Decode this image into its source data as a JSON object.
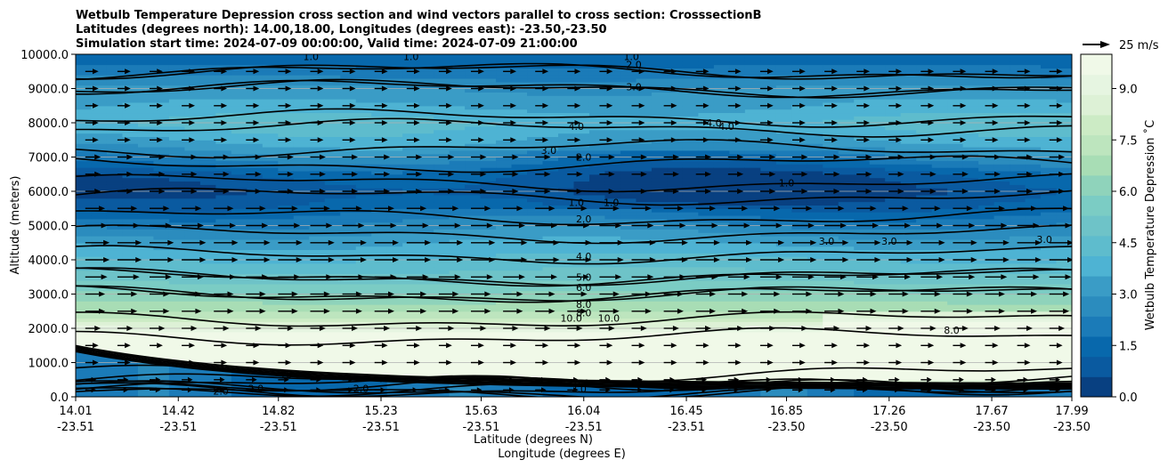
{
  "chart_data": {
    "type": "contourf",
    "title": [
      "Wetbulb Temperature Depression cross section and wind vectors parallel to cross section: CrosssectionB",
      "Latitudes (degrees north): 14.00,18.00, Longitudes (degrees east): -23.50,-23.50",
      "Simulation start time: 2024-07-09 00:00:00, Valid time: 2024-07-09 21:00:00"
    ],
    "ylabel": "Altitude (meters)",
    "xlabel": "Latitude (degrees N)",
    "xlabel2": "Longitude (degrees E)",
    "ylim": [
      0,
      10000
    ],
    "yticks": [
      "0.0",
      "1000.0",
      "2000.0",
      "3000.0",
      "4000.0",
      "5000.0",
      "6000.0",
      "7000.0",
      "8000.0",
      "9000.0",
      "10000.0"
    ],
    "xticks_lat": [
      "14.01",
      "14.42",
      "14.82",
      "15.23",
      "15.63",
      "16.04",
      "16.45",
      "16.85",
      "17.26",
      "17.67",
      "17.99"
    ],
    "xticks_lon": [
      "-23.51",
      "-23.51",
      "-23.51",
      "-23.51",
      "-23.51",
      "-23.51",
      "-23.51",
      "-23.50",
      "-23.50",
      "-23.50",
      "-23.50"
    ],
    "colorbar": {
      "label": "Wetbulb Temperature Depression ˚C",
      "range": [
        0,
        10
      ],
      "ticks": [
        "0.0",
        "1.5",
        "3.0",
        "4.5",
        "6.0",
        "7.5",
        "9.0"
      ],
      "colors": [
        "#084081",
        "#0a5aa0",
        "#0868ac",
        "#1b7bb8",
        "#2b8cbe",
        "#3a9cc6",
        "#4eb3d3",
        "#5ebccd",
        "#6ec3c8",
        "#7bccc4",
        "#8fd3bb",
        "#a8ddb5",
        "#bde5be",
        "#ccebc5",
        "#ddf1d6",
        "#e6f5e1",
        "#f0f9e8"
      ]
    },
    "profile": {
      "altitude": [
        0,
        200,
        500,
        1000,
        1500,
        2000,
        2500,
        3000,
        3500,
        4000,
        4500,
        5000,
        5500,
        6000,
        6500,
        7000,
        7500,
        8000,
        8500,
        9000,
        9500,
        10000
      ],
      "depression": [
        1.5,
        2.0,
        9.5,
        11.0,
        11.0,
        9.0,
        7.0,
        6.0,
        5.0,
        4.2,
        3.5,
        2.5,
        1.5,
        0.8,
        1.2,
        2.5,
        3.5,
        4.2,
        3.5,
        3.0,
        2.0,
        1.2
      ]
    },
    "contour_levels": [
      1.0,
      2.0,
      3.0,
      4.0,
      5.0,
      6.0,
      8.0,
      10.0
    ],
    "contour_labels": [
      {
        "text": "1.0",
        "lat": 14.95,
        "alt": 9930
      },
      {
        "text": "1.0",
        "lat": 15.35,
        "alt": 9930
      },
      {
        "text": "1.0",
        "lat": 16.23,
        "alt": 9930
      },
      {
        "text": "2.0",
        "lat": 16.24,
        "alt": 9700
      },
      {
        "text": "3.0",
        "lat": 16.24,
        "alt": 9050
      },
      {
        "text": "4.0",
        "lat": 16.56,
        "alt": 8000
      },
      {
        "text": "4.0",
        "lat": 16.61,
        "alt": 7900
      },
      {
        "text": "4.0",
        "lat": 16.01,
        "alt": 7900
      },
      {
        "text": "3.0",
        "lat": 15.9,
        "alt": 7200
      },
      {
        "text": "2.0",
        "lat": 16.04,
        "alt": 7000
      },
      {
        "text": "1.0",
        "lat": 16.85,
        "alt": 6250
      },
      {
        "text": "1.0",
        "lat": 16.01,
        "alt": 5680
      },
      {
        "text": "1.0",
        "lat": 16.15,
        "alt": 5680
      },
      {
        "text": "2.0",
        "lat": 16.04,
        "alt": 5200
      },
      {
        "text": "3.0",
        "lat": 17.01,
        "alt": 4550
      },
      {
        "text": "3.0",
        "lat": 17.26,
        "alt": 4550
      },
      {
        "text": "3.0",
        "lat": 17.88,
        "alt": 4600
      },
      {
        "text": "4.0",
        "lat": 16.04,
        "alt": 4100
      },
      {
        "text": "5.0",
        "lat": 16.04,
        "alt": 3500
      },
      {
        "text": "6.0",
        "lat": 16.04,
        "alt": 3200
      },
      {
        "text": "8.0",
        "lat": 16.04,
        "alt": 2700
      },
      {
        "text": "8.0",
        "lat": 16.04,
        "alt": 2450
      },
      {
        "text": "10.0",
        "lat": 15.99,
        "alt": 2300
      },
      {
        "text": "10.0",
        "lat": 16.14,
        "alt": 2300
      },
      {
        "text": "8.0",
        "lat": 17.51,
        "alt": 1950
      },
      {
        "text": "10",
        "lat": 14.85,
        "alt": 650
      },
      {
        "text": "2.0",
        "lat": 14.59,
        "alt": 170
      },
      {
        "text": "2.0",
        "lat": 14.73,
        "alt": 250
      },
      {
        "text": "2.0",
        "lat": 15.15,
        "alt": 250
      },
      {
        "text": "10.0",
        "lat": 16.02,
        "alt": 400
      },
      {
        "text": "2.0",
        "lat": 16.02,
        "alt": 230
      }
    ],
    "wind": {
      "direction": "parallel to cross section (southerly → northward, rightward)",
      "reference_label": "25 m/s",
      "reference_speed": 25,
      "speed_by_altitude": [
        {
          "alt": 200,
          "speed": 10
        },
        {
          "alt": 500,
          "speed": 10
        },
        {
          "alt": 1000,
          "speed": 12
        },
        {
          "alt": 1500,
          "speed": 12
        },
        {
          "alt": 2000,
          "speed": 14
        },
        {
          "alt": 2500,
          "speed": 18
        },
        {
          "alt": 3000,
          "speed": 18
        },
        {
          "alt": 3500,
          "speed": 20
        },
        {
          "alt": 4000,
          "speed": 22
        },
        {
          "alt": 4500,
          "speed": 22
        },
        {
          "alt": 5000,
          "speed": 20
        },
        {
          "alt": 5500,
          "speed": 18
        },
        {
          "alt": 6000,
          "speed": 14
        },
        {
          "alt": 6500,
          "speed": 14
        },
        {
          "alt": 7000,
          "speed": 14
        },
        {
          "alt": 7500,
          "speed": 12
        },
        {
          "alt": 8000,
          "speed": 12
        },
        {
          "alt": 8500,
          "speed": 12
        },
        {
          "alt": 9000,
          "speed": 12
        },
        {
          "alt": 9500,
          "speed": 12
        }
      ],
      "lat_count": 31
    }
  }
}
